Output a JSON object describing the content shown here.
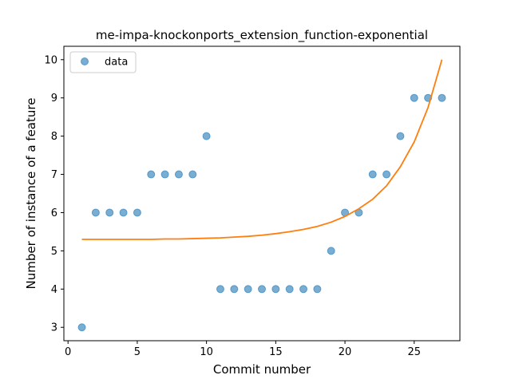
{
  "chart_data": {
    "type": "scatter",
    "title": "me-impa-knockonports_extension_function-exponential",
    "xlabel": "Commit number",
    "ylabel": "Number of instance of a feature",
    "xlim": [
      -0.3,
      28.3
    ],
    "ylim": [
      2.65,
      10.35
    ],
    "xticks": [
      0,
      5,
      10,
      15,
      20,
      25
    ],
    "yticks": [
      3,
      4,
      5,
      6,
      7,
      8,
      9,
      10
    ],
    "grid": false,
    "legend": {
      "entries": [
        "data"
      ],
      "placement": "top-left"
    },
    "series": [
      {
        "name": "data",
        "kind": "scatter",
        "color": "#1f77b4",
        "x": [
          1,
          2,
          3,
          4,
          5,
          6,
          7,
          8,
          9,
          10,
          11,
          12,
          13,
          14,
          15,
          16,
          17,
          18,
          19,
          20,
          21,
          22,
          23,
          24,
          25,
          26,
          27
        ],
        "y": [
          3,
          6,
          6,
          6,
          6,
          7,
          7,
          7,
          7,
          8,
          4,
          4,
          4,
          4,
          4,
          4,
          4,
          4,
          5,
          6,
          6,
          7,
          7,
          8,
          9,
          9,
          9
        ]
      },
      {
        "kind": "line",
        "color": "#ff7f0e",
        "x": [
          1,
          2,
          3,
          4,
          5,
          6,
          7,
          8,
          9,
          10,
          11,
          12,
          13,
          14,
          15,
          16,
          17,
          18,
          19,
          20,
          21,
          22,
          23,
          24,
          25,
          26,
          27
        ],
        "y": [
          5.3,
          5.3,
          5.3,
          5.3,
          5.3,
          5.3,
          5.31,
          5.31,
          5.32,
          5.33,
          5.34,
          5.36,
          5.38,
          5.41,
          5.45,
          5.5,
          5.56,
          5.64,
          5.75,
          5.9,
          6.1,
          6.35,
          6.7,
          7.2,
          7.85,
          8.75,
          10.0
        ]
      }
    ]
  }
}
